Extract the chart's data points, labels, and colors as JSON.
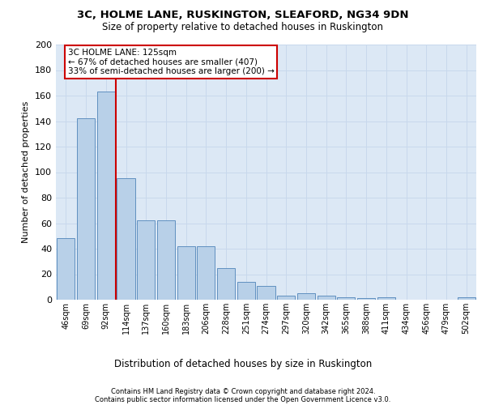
{
  "title1": "3C, HOLME LANE, RUSKINGTON, SLEAFORD, NG34 9DN",
  "title2": "Size of property relative to detached houses in Ruskington",
  "xlabel": "Distribution of detached houses by size in Ruskington",
  "ylabel": "Number of detached properties",
  "bar_labels": [
    "46sqm",
    "69sqm",
    "92sqm",
    "114sqm",
    "137sqm",
    "160sqm",
    "183sqm",
    "206sqm",
    "228sqm",
    "251sqm",
    "274sqm",
    "297sqm",
    "320sqm",
    "342sqm",
    "365sqm",
    "388sqm",
    "411sqm",
    "434sqm",
    "456sqm",
    "479sqm",
    "502sqm"
  ],
  "bar_values": [
    48,
    142,
    163,
    95,
    62,
    62,
    42,
    42,
    25,
    14,
    11,
    3,
    5,
    3,
    2,
    1,
    2,
    0,
    0,
    0,
    2
  ],
  "bar_color": "#b8d0e8",
  "bar_edge_color": "#6090c0",
  "vline_pos": 2.5,
  "vline_color": "#cc0000",
  "annotation_text": "3C HOLME LANE: 125sqm\n← 67% of detached houses are smaller (407)\n33% of semi-detached houses are larger (200) →",
  "annotation_box_facecolor": "#ffffff",
  "annotation_box_edgecolor": "#cc0000",
  "grid_color": "#c8d8ec",
  "bg_color": "#dce8f5",
  "ylim": [
    0,
    200
  ],
  "yticks": [
    0,
    20,
    40,
    60,
    80,
    100,
    120,
    140,
    160,
    180,
    200
  ],
  "footer1": "Contains HM Land Registry data © Crown copyright and database right 2024.",
  "footer2": "Contains public sector information licensed under the Open Government Licence v3.0."
}
